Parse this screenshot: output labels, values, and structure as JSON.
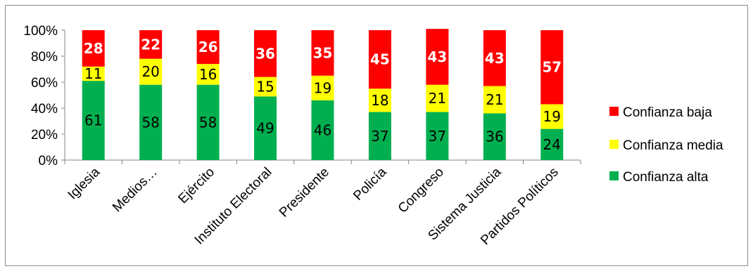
{
  "chart_data": {
    "type": "bar",
    "stacked": true,
    "normalized": true,
    "categories": [
      "Iglesia",
      "Medios…",
      "Ejército",
      "Instituto Electoral",
      "Presidente",
      "Policía",
      "Congreso",
      "Sistema Justicia",
      "Partidos Políticos"
    ],
    "series": [
      {
        "name": "Confianza alta",
        "color": "#00b050",
        "values": [
          61,
          58,
          58,
          49,
          46,
          37,
          37,
          36,
          24
        ]
      },
      {
        "name": "Confianza media",
        "color": "#ffff00",
        "values": [
          11,
          20,
          16,
          15,
          19,
          18,
          21,
          21,
          19
        ]
      },
      {
        "name": "Confianza baja",
        "color": "#ff0000",
        "values": [
          28,
          22,
          26,
          36,
          35,
          45,
          43,
          43,
          57
        ]
      }
    ],
    "y_ticks": [
      "0%",
      "20%",
      "40%",
      "60%",
      "80%",
      "100%"
    ],
    "ylim": [
      0,
      100
    ],
    "legend_position": "right",
    "grid": false
  }
}
